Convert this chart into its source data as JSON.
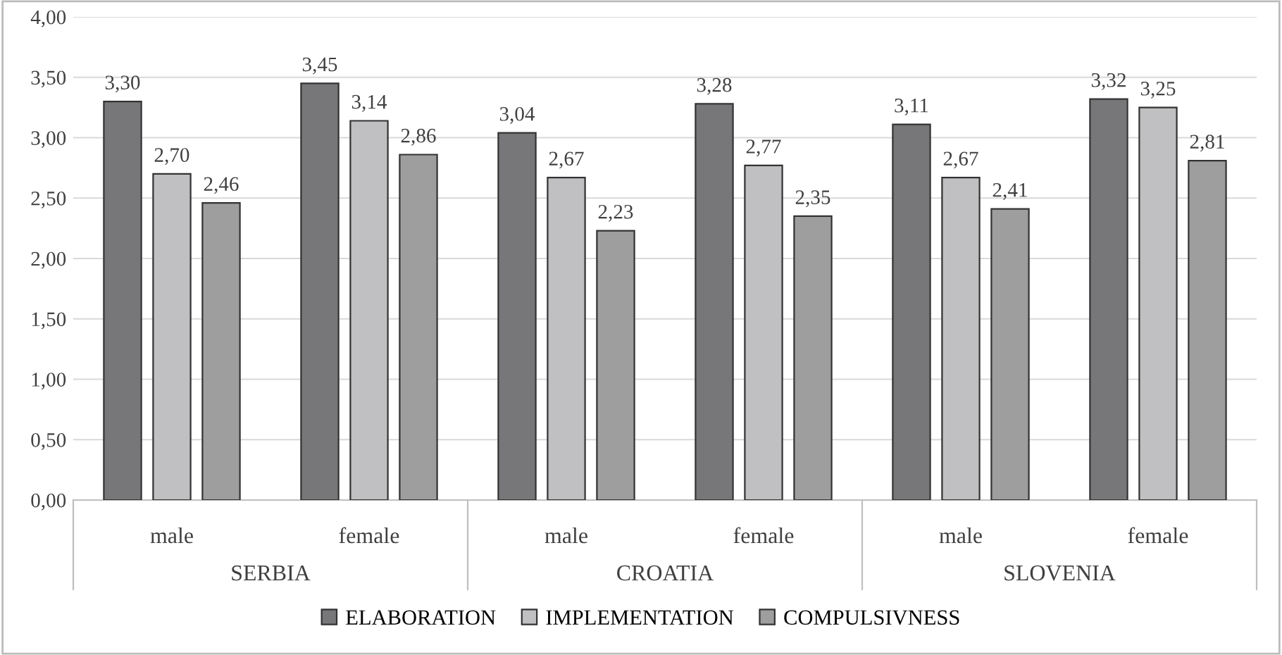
{
  "chart_data": {
    "type": "bar",
    "categories": [
      "male",
      "female",
      "male",
      "female",
      "male",
      "female"
    ],
    "annotations": [
      "SERBIA",
      "CROATIA",
      "SLOVENIA"
    ],
    "series": [
      {
        "name": "ELABORATION",
        "color": "#77777a",
        "values": [
          3.3,
          3.45,
          3.04,
          3.28,
          3.11,
          3.32
        ],
        "value_labels": [
          "3,30",
          "3,45",
          "3,04",
          "3,28",
          "3,11",
          "3,32"
        ]
      },
      {
        "name": "IMPLEMENTATION",
        "color": "#c0c0c2",
        "values": [
          2.7,
          3.14,
          2.67,
          2.77,
          2.67,
          3.25
        ],
        "value_labels": [
          "2,70",
          "3,14",
          "2,67",
          "2,77",
          "2,67",
          "3,25"
        ]
      },
      {
        "name": "COMPULSIVNESS",
        "color": "#9e9e9e",
        "values": [
          2.46,
          2.86,
          2.23,
          2.35,
          2.41,
          2.81
        ],
        "value_labels": [
          "2,46",
          "2,86",
          "2,23",
          "2,35",
          "2,41",
          "2,81"
        ]
      }
    ],
    "ylim": [
      0,
      4
    ],
    "yticks": [
      {
        "value": 0,
        "label": "0,00"
      },
      {
        "value": 0.5,
        "label": "0,50"
      },
      {
        "value": 1,
        "label": "1,00"
      },
      {
        "value": 1.5,
        "label": "1,50"
      },
      {
        "value": 2,
        "label": "2,00"
      },
      {
        "value": 2.5,
        "label": "2,50"
      },
      {
        "value": 3,
        "label": "3,00"
      },
      {
        "value": 3.5,
        "label": "3,50"
      },
      {
        "value": 4,
        "label": "4,00"
      }
    ],
    "grid": "y",
    "legend": "bottom"
  }
}
